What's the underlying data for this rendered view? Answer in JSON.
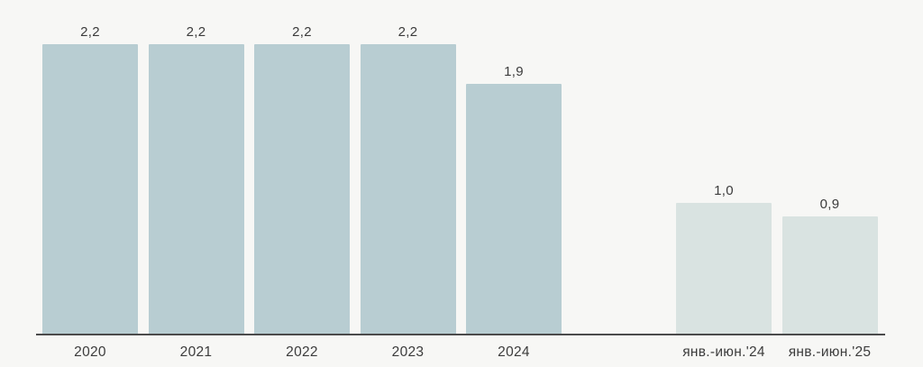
{
  "chart_data": {
    "type": "bar",
    "title": "",
    "xlabel": "",
    "ylabel": "",
    "categories": [
      "2020",
      "2021",
      "2022",
      "2023",
      "2024",
      "янв.-июн.'24",
      "янв.-июн.'25"
    ],
    "values": [
      2.2,
      2.2,
      2.2,
      2.2,
      1.9,
      1.0,
      0.9
    ],
    "value_labels": [
      "2,2",
      "2,2",
      "2,2",
      "2,2",
      "1,9",
      "1,0",
      "0,9"
    ],
    "groups": [
      "annual",
      "annual",
      "annual",
      "annual",
      "annual",
      "half_year",
      "half_year"
    ],
    "colors": {
      "annual": "#b8cdd2",
      "half_year": "#d9e3e1"
    },
    "ylim": [
      0,
      2.4
    ],
    "grid": false,
    "legend": false,
    "background_color": "#f7f7f5",
    "axis_line_color": "#4b4b4b",
    "label_color": "#3c3c3c"
  }
}
